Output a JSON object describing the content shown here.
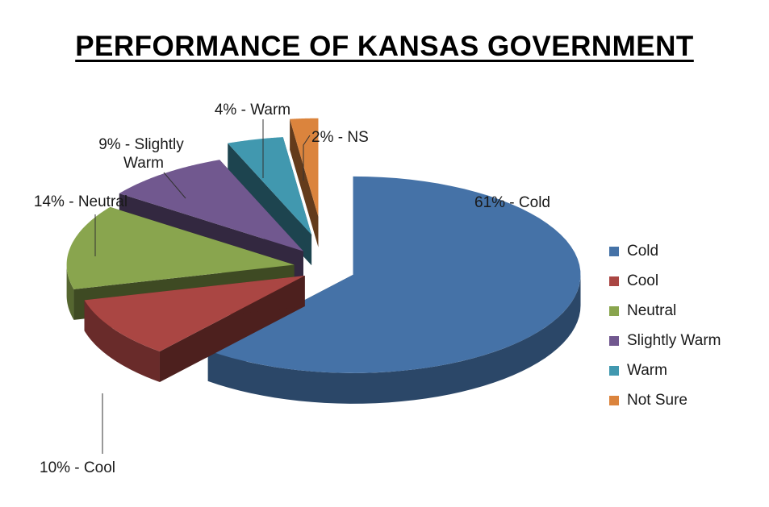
{
  "chart_data": {
    "type": "pie",
    "title": "PERFORMANCE OF KANSAS GOVERNMENT",
    "categories": [
      "Cold",
      "Cool",
      "Neutral",
      "Slightly Warm",
      "Warm",
      "Not Sure"
    ],
    "values": [
      61,
      10,
      14,
      9,
      4,
      2
    ],
    "unit": "%",
    "data_labels": [
      "61% - Cold",
      "10% - Cool",
      "14% - Neutral",
      "9% - Slightly Warm",
      "4% - Warm",
      "2% - NS"
    ],
    "colors": [
      "#4572A7",
      "#AA4643",
      "#89A54E",
      "#71588F",
      "#4198AF",
      "#DB843D"
    ],
    "exploded": true,
    "three_d": true,
    "legend_position": "right"
  }
}
